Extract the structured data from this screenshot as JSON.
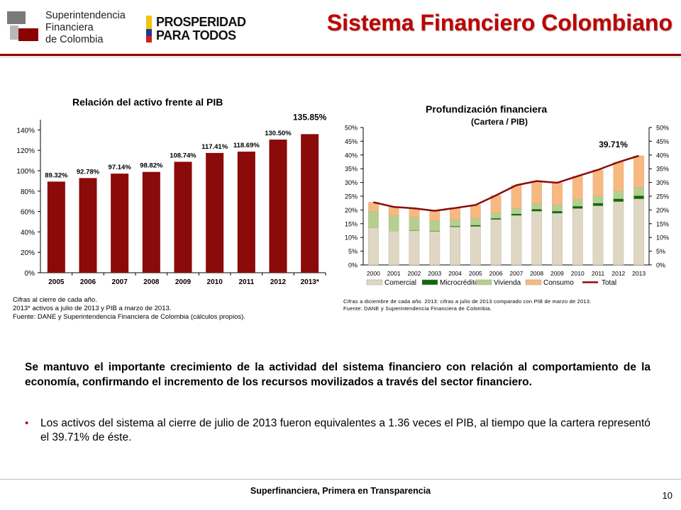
{
  "header": {
    "title": "Sistema Financiero Colombiano",
    "org_logo_lines": [
      "Superintendencia",
      "Financiera",
      "de Colombia"
    ],
    "campaign_logo_lines": [
      "PROSPERIDAD",
      "PARA TODOS"
    ]
  },
  "chart_data": [
    {
      "type": "bar",
      "title": "Relación del activo frente al PIB",
      "categories": [
        "2005",
        "2006",
        "2007",
        "2008",
        "2009",
        "2010",
        "2011",
        "2012",
        "2013*"
      ],
      "values": [
        89.32,
        92.78,
        97.14,
        98.82,
        108.74,
        117.41,
        118.69,
        130.5,
        135.85
      ],
      "data_labels": [
        "89.32%",
        "92.78%",
        "97.14%",
        "98.82%",
        "108.74%",
        "117.41%",
        "118.69%",
        "130.50%",
        "135.85%"
      ],
      "y_ticks": [
        "0%",
        "20%",
        "40%",
        "60%",
        "80%",
        "100%",
        "120%",
        "140%"
      ],
      "ylim": [
        0,
        150
      ],
      "bar_color": "#8b0a0a",
      "notes": [
        "Cifras al cierre de cada año.",
        "2013* activos a julio de 2013 y PIB a marzo de 2013.",
        "Fuente: DANE y Superintendencia Financiera de Colombia (cálculos propios)."
      ]
    },
    {
      "type": "bar",
      "stacked": true,
      "title": "Profundización financiera",
      "subtitle": "(Cartera / PIB)",
      "categories": [
        "2000",
        "2001",
        "2002",
        "2003",
        "2004",
        "2005",
        "2006",
        "2007",
        "2008",
        "2009",
        "2010",
        "2011",
        "2012",
        "2013"
      ],
      "series": [
        {
          "name": "Comercial",
          "color": "#dfd7c3",
          "values": [
            13.5,
            12.3,
            12.5,
            12.2,
            13.8,
            14.0,
            16.5,
            18.0,
            19.5,
            18.8,
            20.5,
            21.5,
            23.0,
            24.0
          ]
        },
        {
          "name": "Microcrédito",
          "color": "#0a6b0a",
          "values": [
            0,
            0,
            0.2,
            0.2,
            0.3,
            0.5,
            0.5,
            0.6,
            0.8,
            0.8,
            0.9,
            1.0,
            1.1,
            1.2
          ]
        },
        {
          "name": "Vivienda",
          "color": "#b5cf8e",
          "values": [
            6.0,
            5.6,
            4.6,
            3.8,
            2.5,
            2.3,
            2.0,
            2.0,
            2.0,
            2.2,
            2.4,
            2.6,
            2.8,
            3.1
          ]
        },
        {
          "name": "Consumo",
          "color": "#f9b880",
          "values": [
            3.3,
            3.2,
            3.3,
            3.5,
            4.1,
            5.0,
            6.3,
            8.4,
            8.2,
            8.1,
            8.5,
            9.5,
            10.5,
            11.4
          ]
        }
      ],
      "line": {
        "name": "Total",
        "color": "#8b0a0a",
        "values": [
          22.8,
          21.1,
          20.6,
          19.7,
          20.7,
          21.8,
          25.3,
          29.0,
          30.5,
          29.9,
          32.3,
          34.6,
          37.4,
          39.71
        ]
      },
      "data_labels": [
        "39.71%"
      ],
      "y_ticks": [
        "0%",
        "5%",
        "10%",
        "15%",
        "20%",
        "25%",
        "30%",
        "35%",
        "40%",
        "45%",
        "50%"
      ],
      "ylim": [
        0,
        50
      ],
      "legend_position": "bottom",
      "notes": [
        "Cifras a diciembre de cada año. 2013: cifras a julio de 2013 comparado con PIB de marzo de 2013.",
        "Fuente: DANE y Superintendencia Financiera de Colombia."
      ]
    }
  ],
  "body": {
    "paragraph": "Se mantuvo el importante crecimiento de la actividad del sistema financiero con relación al comportamiento de la economía, confirmando el incremento de los recursos movilizados a través del sector financiero.",
    "bullet": "Los activos del sistema al cierre de julio de 2013 fueron equivalentes a 1.36 veces el PIB, al tiempo que la cartera representó el 39.71% de éste.",
    "bullet_color": "#c00000"
  },
  "footer": {
    "text": "Superfinanciera, Primera en Transparencia",
    "page_number": "10"
  }
}
